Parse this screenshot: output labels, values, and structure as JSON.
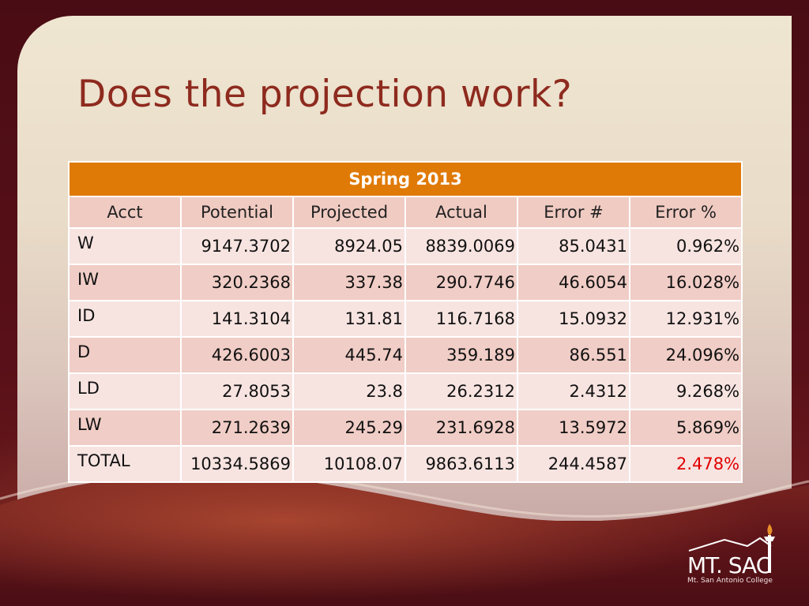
{
  "slide": {
    "title": "Does the projection work?"
  },
  "table": {
    "banner": "Spring 2013",
    "headers": [
      "Acct",
      "Potential",
      "Projected",
      "Actual",
      "Error #",
      "Error %"
    ],
    "rows": [
      [
        "W",
        "9147.3702",
        "8924.05",
        "8839.0069",
        "85.0431",
        "0.962%"
      ],
      [
        "IW",
        "320.2368",
        "337.38",
        "290.7746",
        "46.6054",
        "16.028%"
      ],
      [
        "ID",
        "141.3104",
        "131.81",
        "116.7168",
        "15.0932",
        "12.931%"
      ],
      [
        "D",
        "426.6003",
        "445.74",
        "359.189",
        "86.551",
        "24.096%"
      ],
      [
        "LD",
        "27.8053",
        "23.8",
        "26.2312",
        "2.4312",
        "9.268%"
      ],
      [
        "LW",
        "271.2639",
        "245.29",
        "231.6928",
        "13.5972",
        "5.869%"
      ],
      [
        "TOTAL",
        "10334.5869",
        "10108.07",
        "9863.6113",
        "244.4587",
        "2.478%"
      ]
    ],
    "highlight_color": "#e00000"
  },
  "logo": {
    "icon": "torch-mountain-logo-icon",
    "name": "MT. SAC",
    "subtitle": "Mt. San Antonio College"
  }
}
